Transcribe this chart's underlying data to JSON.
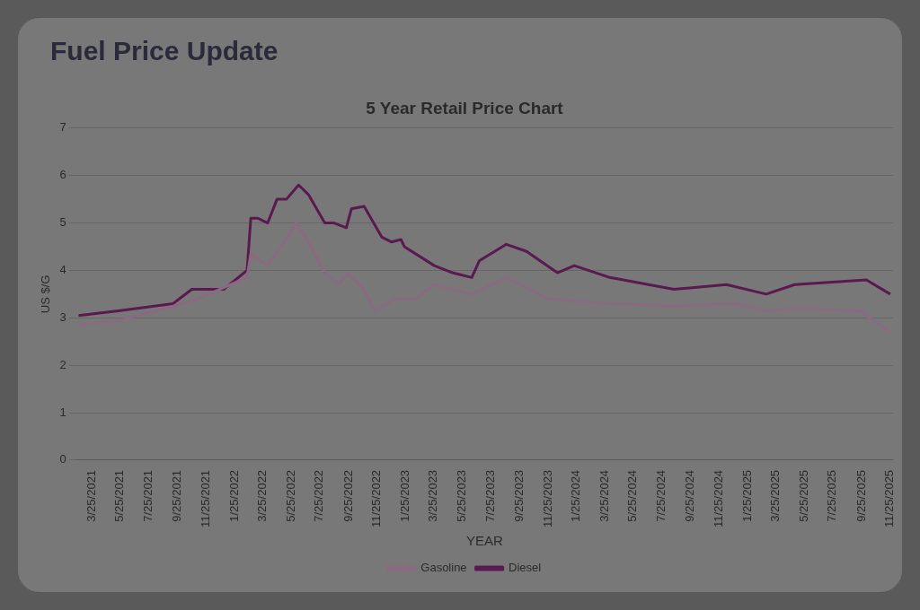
{
  "chart_data": {
    "type": "line",
    "title": "Fuel Price Update",
    "subtitle": "5 Year Retail Price Chart",
    "xlabel": "YEAR",
    "ylabel": "US $/G",
    "xlim": [
      "2021-02-20",
      "2025-12-01"
    ],
    "xticks": [
      {
        "value": "2021-03-25",
        "label": "3/25/2021"
      },
      {
        "value": "2021-05-25",
        "label": "5/25/2021"
      },
      {
        "value": "2021-07-25",
        "label": "7/25/2021"
      },
      {
        "value": "2021-09-25",
        "label": "9/25/2021"
      },
      {
        "value": "2021-11-25",
        "label": "11/25/2021"
      },
      {
        "value": "2022-01-25",
        "label": "1/25/2022"
      },
      {
        "value": "2022-03-25",
        "label": "3/25/2022"
      },
      {
        "value": "2022-05-25",
        "label": "5/25/2022"
      },
      {
        "value": "2022-07-25",
        "label": "7/25/2022"
      },
      {
        "value": "2022-09-25",
        "label": "9/25/2022"
      },
      {
        "value": "2022-11-25",
        "label": "11/25/2022"
      },
      {
        "value": "2023-01-25",
        "label": "1/25/2023"
      },
      {
        "value": "2023-03-25",
        "label": "3/25/2023"
      },
      {
        "value": "2023-05-25",
        "label": "5/25/2023"
      },
      {
        "value": "2023-07-25",
        "label": "7/25/2023"
      },
      {
        "value": "2023-09-25",
        "label": "9/25/2023"
      },
      {
        "value": "2023-11-25",
        "label": "11/25/2023"
      },
      {
        "value": "2024-01-25",
        "label": "1/25/2024"
      },
      {
        "value": "2024-03-25",
        "label": "3/25/2024"
      },
      {
        "value": "2024-05-25",
        "label": "5/25/2024"
      },
      {
        "value": "2024-07-25",
        "label": "7/25/2024"
      },
      {
        "value": "2024-09-25",
        "label": "9/25/2024"
      },
      {
        "value": "2024-11-25",
        "label": "11/25/2024"
      },
      {
        "value": "2025-01-25",
        "label": "1/25/2025"
      },
      {
        "value": "2025-03-25",
        "label": "3/25/2025"
      },
      {
        "value": "2025-05-25",
        "label": "5/25/2025"
      },
      {
        "value": "2025-07-25",
        "label": "7/25/2025"
      },
      {
        "value": "2025-09-25",
        "label": "9/25/2025"
      },
      {
        "value": "2025-11-25",
        "label": "11/25/2025"
      }
    ],
    "ylim": [
      0,
      7
    ],
    "yticks": [
      0,
      1,
      2,
      3,
      4,
      5,
      6,
      7
    ],
    "grid": "y",
    "legend": "bottom",
    "marker": "none",
    "series": [
      {
        "name": "Gasoline",
        "color": "#8a6a80",
        "x": [
          "2021-02-25",
          "2021-05-25",
          "2021-10-25",
          "2022-02-20",
          "2022-02-28",
          "2022-04-05",
          "2022-05-10",
          "2022-06-05",
          "2022-07-01",
          "2022-08-05",
          "2022-09-05",
          "2022-09-22",
          "2022-10-20",
          "2022-11-20",
          "2023-01-01",
          "2023-02-15",
          "2023-03-27",
          "2023-05-05",
          "2023-06-15",
          "2023-08-28",
          "2023-11-25",
          "2024-04-05",
          "2024-08-20",
          "2024-12-30",
          "2025-03-05",
          "2025-05-05",
          "2025-09-20",
          "2025-11-25"
        ],
        "values": [
          2.85,
          2.95,
          3.35,
          3.85,
          4.35,
          4.1,
          4.6,
          5.0,
          4.6,
          3.95,
          3.7,
          3.95,
          3.7,
          3.15,
          3.4,
          3.4,
          3.7,
          3.6,
          3.5,
          3.85,
          3.4,
          3.3,
          3.25,
          3.3,
          3.15,
          3.2,
          3.15,
          2.7
        ]
      },
      {
        "name": "Diesel",
        "color": "#5a1a50",
        "x": [
          "2021-02-25",
          "2021-05-25",
          "2021-09-15",
          "2021-10-25",
          "2022-01-01",
          "2022-02-20",
          "2022-02-28",
          "2022-03-15",
          "2022-04-05",
          "2022-04-25",
          "2022-05-15",
          "2022-06-10",
          "2022-07-01",
          "2022-08-05",
          "2022-08-25",
          "2022-09-20",
          "2022-10-01",
          "2022-10-28",
          "2022-12-05",
          "2022-12-25",
          "2023-01-15",
          "2023-01-22",
          "2023-03-27",
          "2023-05-05",
          "2023-06-15",
          "2023-07-01",
          "2023-08-28",
          "2023-10-10",
          "2023-12-15",
          "2024-01-20",
          "2024-04-05",
          "2024-08-20",
          "2024-12-10",
          "2025-03-05",
          "2025-05-05",
          "2025-10-05",
          "2025-11-25"
        ],
        "values": [
          3.05,
          3.15,
          3.3,
          3.6,
          3.6,
          4.0,
          5.1,
          5.1,
          5.0,
          5.5,
          5.5,
          5.8,
          5.6,
          5.0,
          5.0,
          4.9,
          5.3,
          5.35,
          4.7,
          4.6,
          4.65,
          4.5,
          4.1,
          3.95,
          3.85,
          4.2,
          4.55,
          4.4,
          3.95,
          4.1,
          3.85,
          3.6,
          3.7,
          3.5,
          3.7,
          3.8,
          3.5
        ]
      }
    ]
  }
}
